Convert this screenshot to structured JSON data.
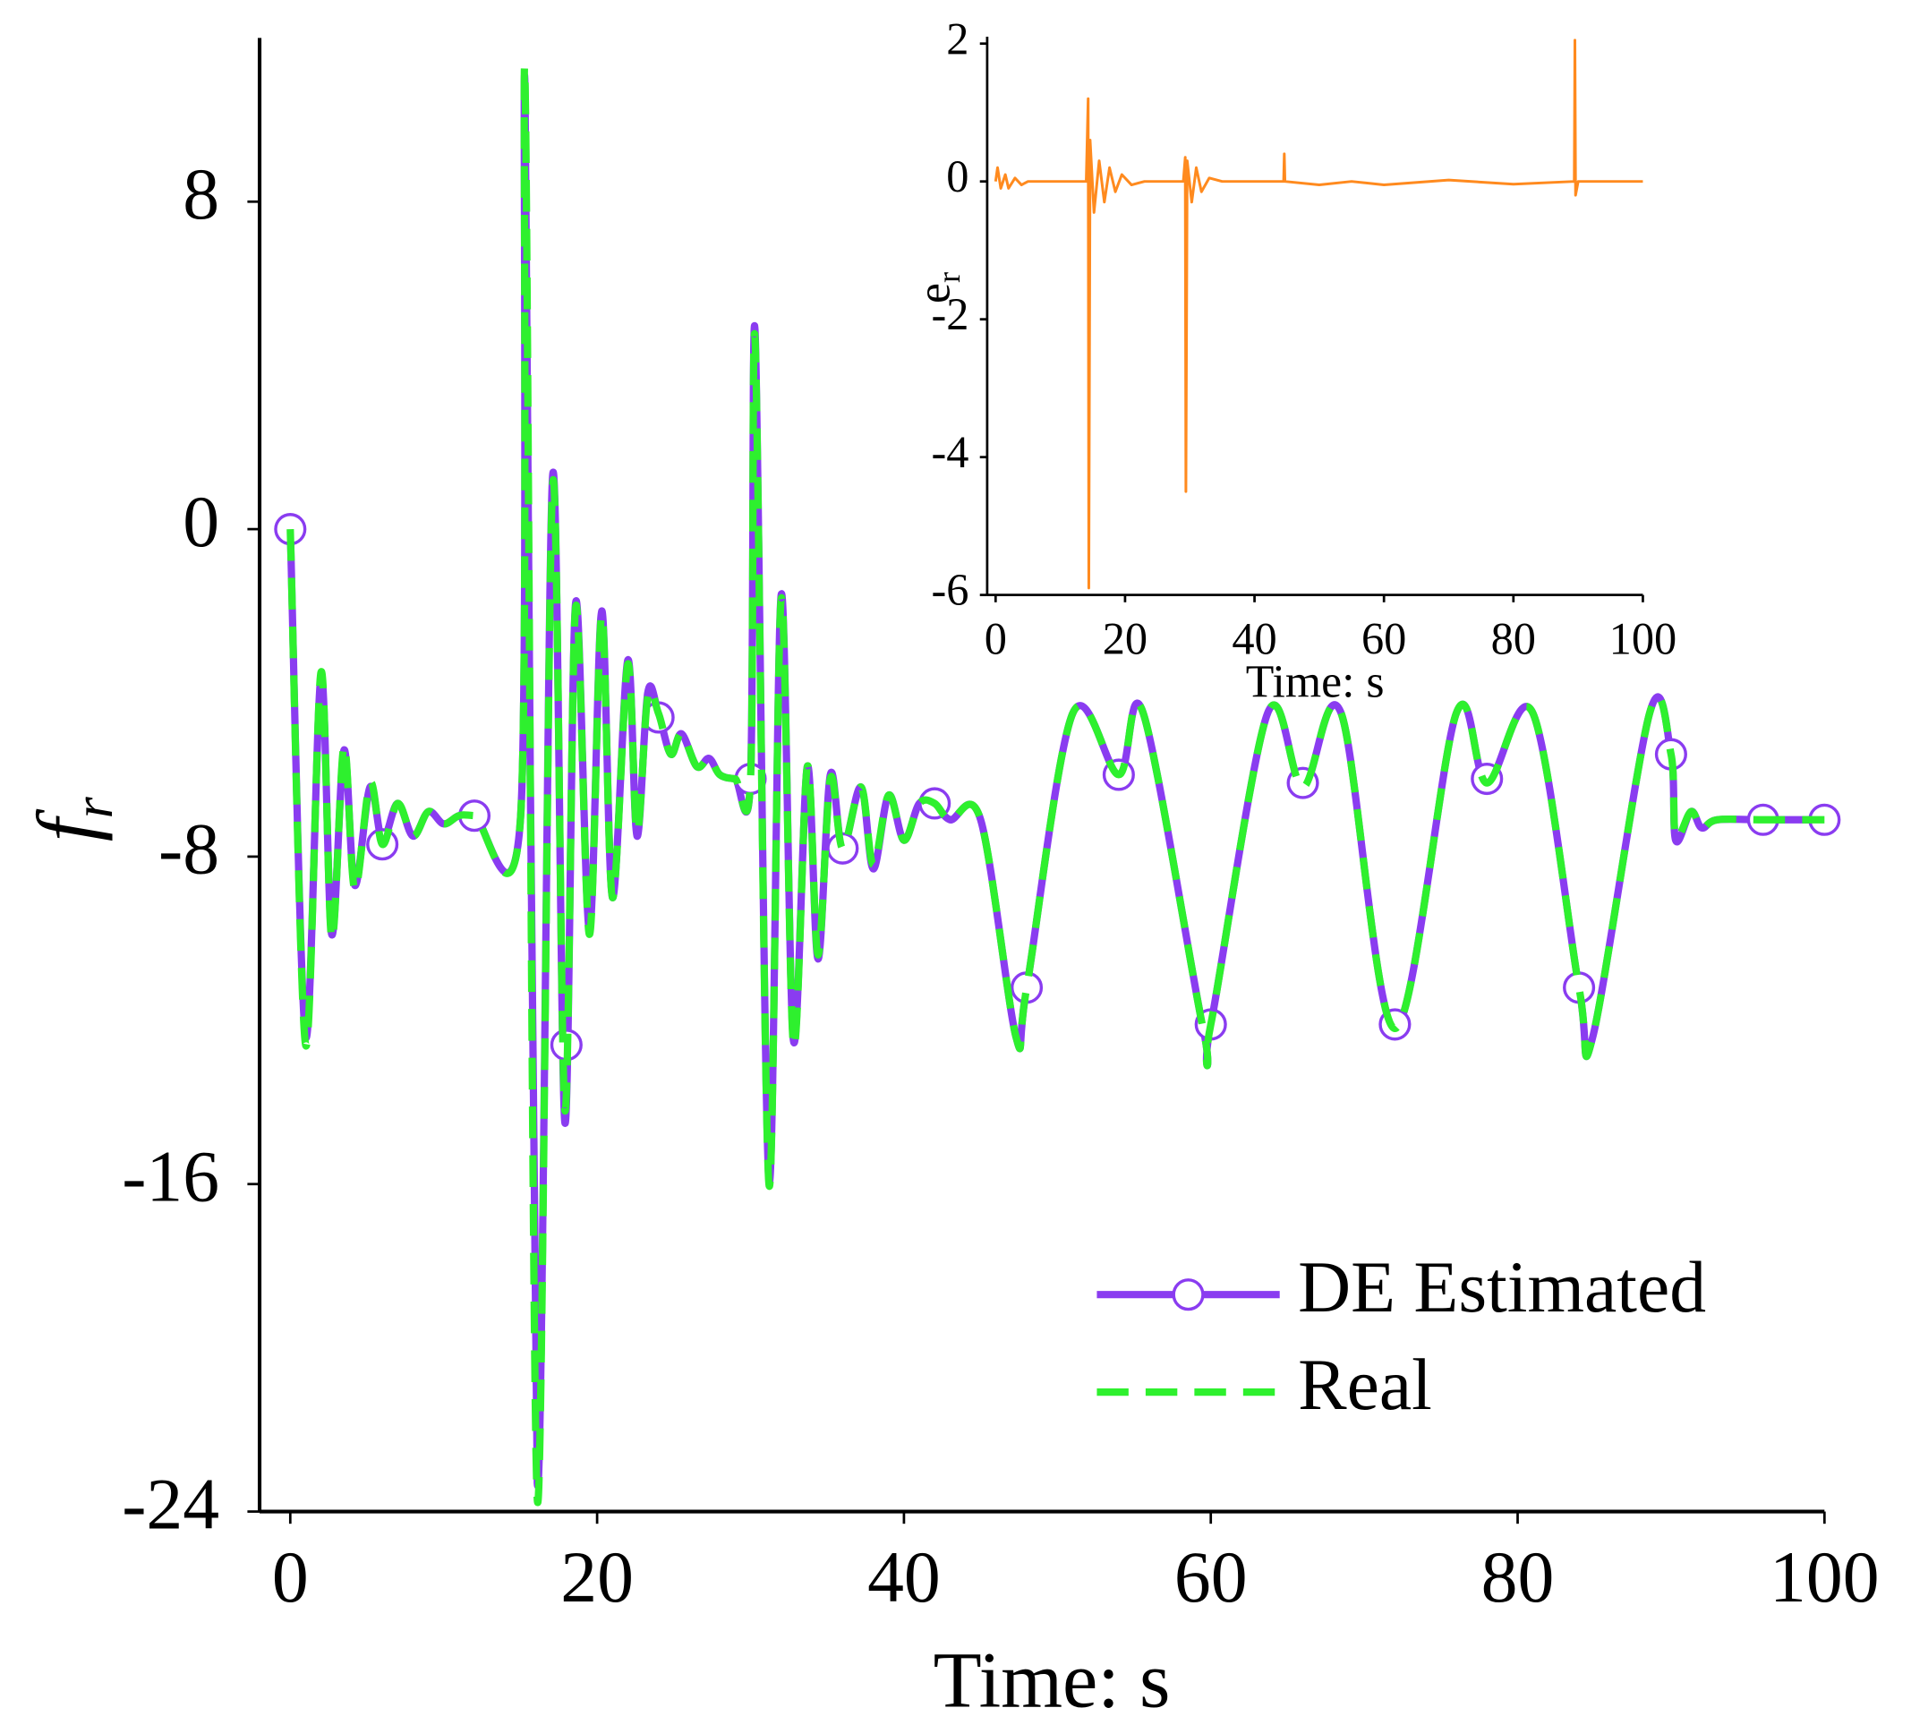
{
  "chart_data": [
    {
      "type": "line",
      "xlabel": "Time: s",
      "ylabel": "f",
      "ylabel_subscript": "r",
      "xlim": [
        -2,
        100
      ],
      "ylim": [
        -24,
        12
      ],
      "xticks": [
        0,
        20,
        40,
        60,
        80,
        100
      ],
      "yticks": [
        -24,
        -16,
        -8,
        0,
        8
      ],
      "legend": "lower right",
      "x": [
        0,
        1,
        2,
        2.7,
        3.5,
        4.2,
        5.2,
        6,
        7,
        8,
        9,
        10,
        11,
        12,
        15,
        15.3,
        16.1,
        17.1,
        17.9,
        18.6,
        19.5,
        20.3,
        21,
        22,
        22.6,
        23.3,
        24,
        24.8,
        25.5,
        26.5,
        27.3,
        28,
        29,
        30,
        30.3,
        31.2,
        32,
        32.8,
        33.7,
        34.4,
        35.2,
        36,
        37.2,
        38,
        39,
        40,
        41,
        42,
        43,
        45,
        47.3,
        48,
        51,
        54,
        55.6,
        59.5,
        60,
        63.7,
        66,
        68.5,
        72,
        76,
        78,
        81,
        84,
        84.9,
        88.6,
        90,
        90.3,
        91.3,
        92,
        93,
        96,
        100
      ],
      "series": [
        {
          "name": "DE Estimated",
          "color": "#8a3cf0",
          "marker": "circle",
          "values": [
            0,
            -12.4,
            -3.6,
            -9.9,
            -5.4,
            -8.7,
            -6.3,
            -7.6,
            -6.7,
            -7.5,
            -6.9,
            -7.2,
            -7,
            -7,
            -7.1,
            10.8,
            -23.3,
            1.3,
            -14.5,
            -1.8,
            -9.8,
            -2,
            -9,
            -3.2,
            -7.5,
            -4,
            -4.5,
            -5.5,
            -5,
            -5.8,
            -5.6,
            -6,
            -6.1,
            -6.1,
            4.8,
            -15.9,
            -1.6,
            -12.5,
            -5.8,
            -10.5,
            -6,
            -7.8,
            -6.3,
            -8.3,
            -6.5,
            -7.6,
            -6.7,
            -6.7,
            -7.1,
            -7.1,
            -12.4,
            -11.2,
            -4.5,
            -6,
            -4.5,
            -12.2,
            -12.1,
            -4.5,
            -6.3,
            -4.5,
            -12.2,
            -4.5,
            -6.2,
            -4.5,
            -11.2,
            -12.4,
            -4.5,
            -5.5,
            -7.6,
            -6.9,
            -7.3,
            -7.1,
            -7.1,
            -7.1
          ],
          "marker_x": [
            0,
            6,
            12,
            18,
            24,
            30,
            36,
            42,
            48,
            54,
            60,
            66,
            72,
            78,
            84,
            90,
            96,
            100
          ],
          "marker_values": [
            0,
            -7.7,
            -7,
            -12.6,
            -4.6,
            -6.1,
            -7.8,
            -6.7,
            -11.2,
            -6,
            -12.1,
            -6.2,
            -12.1,
            -6.1,
            -11.2,
            -5.5,
            -7.1,
            -7.1
          ]
        },
        {
          "name": "Real",
          "color": "#2ef02e",
          "dash": true,
          "values": [
            0,
            -12.6,
            -3.5,
            -10,
            -5.3,
            -8.8,
            -6.2,
            -7.7,
            -6.7,
            -7.5,
            -6.9,
            -7.2,
            -7,
            -7,
            -7.1,
            11,
            -23.7,
            1.1,
            -14.2,
            -1.9,
            -9.9,
            -2.1,
            -9,
            -3.3,
            -7.4,
            -4.1,
            -4.5,
            -5.5,
            -5,
            -5.8,
            -5.6,
            -6,
            -6.1,
            -6.1,
            4.6,
            -16,
            -1.7,
            -12.6,
            -5.8,
            -10.4,
            -6.1,
            -7.8,
            -6.3,
            -8.2,
            -6.5,
            -7.6,
            -6.7,
            -6.7,
            -7.1,
            -7.1,
            -12.4,
            -11.2,
            -4.5,
            -6,
            -4.5,
            -12.2,
            -12.1,
            -4.5,
            -6.3,
            -4.5,
            -12.2,
            -4.5,
            -6.2,
            -4.5,
            -11.2,
            -12.4,
            -4.5,
            -5.5,
            -7.5,
            -6.9,
            -7.3,
            -7.1,
            -7.1,
            -7.1
          ]
        }
      ]
    },
    {
      "type": "line",
      "xlabel": "Time: s",
      "ylabel": "e",
      "ylabel_subscript": "r",
      "xlim": [
        -1.3,
        100
      ],
      "ylim": [
        -6,
        2.1
      ],
      "xticks": [
        0,
        20,
        40,
        60,
        80,
        100
      ],
      "yticks": [
        -6,
        -4,
        -2,
        0,
        2
      ],
      "x": [
        0,
        0.3,
        0.8,
        1.5,
        2,
        3,
        4,
        5,
        14,
        14.3,
        14.4,
        14.6,
        15.2,
        16,
        16.8,
        17.6,
        18.5,
        19.5,
        21,
        23,
        29,
        29.3,
        29.4,
        29.6,
        30.3,
        31,
        31.8,
        33,
        35,
        44.5,
        44.6,
        44.7,
        50,
        55,
        60,
        70,
        80,
        89.4,
        89.5,
        89.6,
        90,
        100
      ],
      "series": [
        {
          "color": "#ff8a1e",
          "values": [
            0,
            0.2,
            -0.1,
            0.1,
            -0.1,
            0.05,
            -0.05,
            0,
            0,
            1.2,
            -5.9,
            0.6,
            -0.45,
            0.3,
            -0.3,
            0.2,
            -0.15,
            0.1,
            -0.05,
            0,
            0,
            0.35,
            -4.5,
            0.3,
            -0.3,
            0.2,
            -0.15,
            0.05,
            0,
            0,
            0.4,
            0,
            -0.05,
            0,
            -0.05,
            0.02,
            -0.04,
            0,
            2.05,
            -0.2,
            0,
            0
          ]
        }
      ]
    }
  ]
}
